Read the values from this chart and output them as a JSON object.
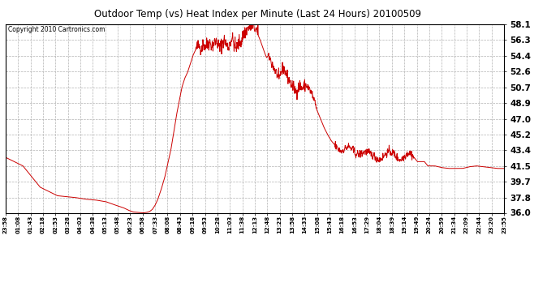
{
  "title": "Outdoor Temp (vs) Heat Index per Minute (Last 24 Hours) 20100509",
  "copyright": "Copyright 2010 Cartronics.com",
  "line_color": "#cc0000",
  "background_color": "#ffffff",
  "grid_color": "#aaaaaa",
  "ylim": [
    36.0,
    58.1
  ],
  "yticks": [
    36.0,
    37.8,
    39.7,
    41.5,
    43.4,
    45.2,
    47.0,
    48.9,
    50.7,
    52.6,
    54.4,
    56.3,
    58.1
  ],
  "xtick_labels": [
    "23:58",
    "01:08",
    "01:43",
    "02:18",
    "02:53",
    "03:28",
    "04:03",
    "04:38",
    "05:13",
    "05:48",
    "06:23",
    "06:58",
    "07:33",
    "08:08",
    "08:43",
    "09:18",
    "09:53",
    "10:28",
    "11:03",
    "11:38",
    "12:13",
    "12:48",
    "13:23",
    "13:58",
    "14:33",
    "15:08",
    "15:43",
    "16:18",
    "16:53",
    "17:29",
    "18:04",
    "18:39",
    "19:14",
    "19:49",
    "20:24",
    "20:59",
    "21:34",
    "22:09",
    "22:44",
    "23:20",
    "23:55"
  ],
  "num_points": 1441,
  "key_values": {
    "0": 42.5,
    "50": 41.5,
    "100": 39.0,
    "150": 38.0,
    "200": 37.8,
    "230": 37.6,
    "260": 37.5,
    "290": 37.3,
    "310": 37.0,
    "325": 36.8,
    "340": 36.6,
    "355": 36.3,
    "368": 36.1,
    "380": 36.05,
    "390": 36.02,
    "400": 36.0,
    "408": 36.05,
    "416": 36.15,
    "424": 36.4,
    "432": 36.9,
    "440": 37.6,
    "450": 38.8,
    "460": 40.2,
    "470": 42.0,
    "478": 43.5,
    "486": 45.5,
    "494": 47.5,
    "502": 49.2,
    "510": 50.8,
    "518": 51.8,
    "526": 52.5,
    "534": 53.5,
    "542": 54.5,
    "550": 55.2,
    "558": 55.6,
    "565": 55.3,
    "572": 55.8,
    "578": 55.5,
    "585": 55.9,
    "590": 56.0,
    "596": 55.6,
    "602": 55.9,
    "608": 56.1,
    "614": 55.8,
    "619": 55.2,
    "624": 55.8,
    "630": 56.3,
    "636": 55.9,
    "642": 55.4,
    "648": 56.0,
    "654": 56.5,
    "660": 55.8,
    "665": 55.3,
    "670": 55.6,
    "676": 56.0,
    "682": 56.2,
    "688": 57.0,
    "694": 57.3,
    "700": 57.6,
    "706": 57.9,
    "712": 58.0,
    "718": 57.8,
    "724": 57.4,
    "730": 56.8,
    "736": 56.2,
    "742": 55.5,
    "748": 54.8,
    "754": 54.2,
    "760": 54.5,
    "766": 53.8,
    "772": 53.3,
    "778": 52.8,
    "784": 52.3,
    "790": 51.5,
    "796": 52.5,
    "802": 53.0,
    "808": 52.5,
    "814": 52.0,
    "820": 51.5,
    "826": 51.0,
    "832": 50.7,
    "838": 50.2,
    "844": 50.5,
    "850": 51.0,
    "856": 50.6,
    "862": 50.8,
    "868": 51.0,
    "874": 50.7,
    "880": 50.3,
    "886": 49.8,
    "892": 49.0,
    "900": 48.0,
    "910": 47.0,
    "920": 46.0,
    "930": 45.2,
    "940": 44.5,
    "950": 44.0,
    "960": 43.5,
    "970": 43.2,
    "980": 43.5,
    "990": 43.8,
    "1000": 43.5,
    "1010": 43.0,
    "1020": 42.8,
    "1030": 43.0,
    "1040": 43.2,
    "1050": 43.0,
    "1060": 42.8,
    "1070": 42.5,
    "1080": 42.2,
    "1090": 42.5,
    "1100": 43.0,
    "1110": 43.2,
    "1120": 43.0,
    "1130": 42.5,
    "1140": 42.2,
    "1150": 42.5,
    "1160": 43.0,
    "1170": 43.0,
    "1180": 42.5,
    "1190": 42.0,
    "1200": 42.0,
    "1210": 42.0,
    "1220": 41.5,
    "1230": 41.5,
    "1240": 41.5,
    "1260": 41.3,
    "1280": 41.2,
    "1300": 41.2,
    "1320": 41.2,
    "1340": 41.4,
    "1360": 41.5,
    "1380": 41.4,
    "1400": 41.3,
    "1420": 41.2,
    "1440": 41.2
  }
}
